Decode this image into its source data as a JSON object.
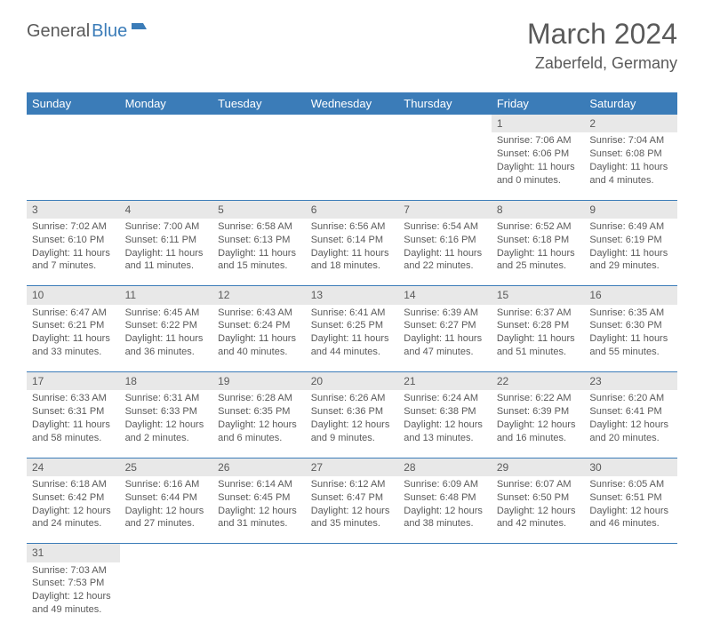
{
  "logo": {
    "part1": "General",
    "part2": "Blue"
  },
  "header": {
    "title": "March 2024",
    "location": "Zaberfeld, Germany"
  },
  "colors": {
    "header_bg": "#3b7cb8",
    "header_text": "#ffffff",
    "daynum_bg": "#e8e8e8",
    "text": "#5a5a5a",
    "border": "#3b7cb8"
  },
  "weekdays": [
    "Sunday",
    "Monday",
    "Tuesday",
    "Wednesday",
    "Thursday",
    "Friday",
    "Saturday"
  ],
  "weeks": [
    [
      null,
      null,
      null,
      null,
      null,
      {
        "n": "1",
        "sr": "Sunrise: 7:06 AM",
        "ss": "Sunset: 6:06 PM",
        "dl": "Daylight: 11 hours and 0 minutes."
      },
      {
        "n": "2",
        "sr": "Sunrise: 7:04 AM",
        "ss": "Sunset: 6:08 PM",
        "dl": "Daylight: 11 hours and 4 minutes."
      }
    ],
    [
      {
        "n": "3",
        "sr": "Sunrise: 7:02 AM",
        "ss": "Sunset: 6:10 PM",
        "dl": "Daylight: 11 hours and 7 minutes."
      },
      {
        "n": "4",
        "sr": "Sunrise: 7:00 AM",
        "ss": "Sunset: 6:11 PM",
        "dl": "Daylight: 11 hours and 11 minutes."
      },
      {
        "n": "5",
        "sr": "Sunrise: 6:58 AM",
        "ss": "Sunset: 6:13 PM",
        "dl": "Daylight: 11 hours and 15 minutes."
      },
      {
        "n": "6",
        "sr": "Sunrise: 6:56 AM",
        "ss": "Sunset: 6:14 PM",
        "dl": "Daylight: 11 hours and 18 minutes."
      },
      {
        "n": "7",
        "sr": "Sunrise: 6:54 AM",
        "ss": "Sunset: 6:16 PM",
        "dl": "Daylight: 11 hours and 22 minutes."
      },
      {
        "n": "8",
        "sr": "Sunrise: 6:52 AM",
        "ss": "Sunset: 6:18 PM",
        "dl": "Daylight: 11 hours and 25 minutes."
      },
      {
        "n": "9",
        "sr": "Sunrise: 6:49 AM",
        "ss": "Sunset: 6:19 PM",
        "dl": "Daylight: 11 hours and 29 minutes."
      }
    ],
    [
      {
        "n": "10",
        "sr": "Sunrise: 6:47 AM",
        "ss": "Sunset: 6:21 PM",
        "dl": "Daylight: 11 hours and 33 minutes."
      },
      {
        "n": "11",
        "sr": "Sunrise: 6:45 AM",
        "ss": "Sunset: 6:22 PM",
        "dl": "Daylight: 11 hours and 36 minutes."
      },
      {
        "n": "12",
        "sr": "Sunrise: 6:43 AM",
        "ss": "Sunset: 6:24 PM",
        "dl": "Daylight: 11 hours and 40 minutes."
      },
      {
        "n": "13",
        "sr": "Sunrise: 6:41 AM",
        "ss": "Sunset: 6:25 PM",
        "dl": "Daylight: 11 hours and 44 minutes."
      },
      {
        "n": "14",
        "sr": "Sunrise: 6:39 AM",
        "ss": "Sunset: 6:27 PM",
        "dl": "Daylight: 11 hours and 47 minutes."
      },
      {
        "n": "15",
        "sr": "Sunrise: 6:37 AM",
        "ss": "Sunset: 6:28 PM",
        "dl": "Daylight: 11 hours and 51 minutes."
      },
      {
        "n": "16",
        "sr": "Sunrise: 6:35 AM",
        "ss": "Sunset: 6:30 PM",
        "dl": "Daylight: 11 hours and 55 minutes."
      }
    ],
    [
      {
        "n": "17",
        "sr": "Sunrise: 6:33 AM",
        "ss": "Sunset: 6:31 PM",
        "dl": "Daylight: 11 hours and 58 minutes."
      },
      {
        "n": "18",
        "sr": "Sunrise: 6:31 AM",
        "ss": "Sunset: 6:33 PM",
        "dl": "Daylight: 12 hours and 2 minutes."
      },
      {
        "n": "19",
        "sr": "Sunrise: 6:28 AM",
        "ss": "Sunset: 6:35 PM",
        "dl": "Daylight: 12 hours and 6 minutes."
      },
      {
        "n": "20",
        "sr": "Sunrise: 6:26 AM",
        "ss": "Sunset: 6:36 PM",
        "dl": "Daylight: 12 hours and 9 minutes."
      },
      {
        "n": "21",
        "sr": "Sunrise: 6:24 AM",
        "ss": "Sunset: 6:38 PM",
        "dl": "Daylight: 12 hours and 13 minutes."
      },
      {
        "n": "22",
        "sr": "Sunrise: 6:22 AM",
        "ss": "Sunset: 6:39 PM",
        "dl": "Daylight: 12 hours and 16 minutes."
      },
      {
        "n": "23",
        "sr": "Sunrise: 6:20 AM",
        "ss": "Sunset: 6:41 PM",
        "dl": "Daylight: 12 hours and 20 minutes."
      }
    ],
    [
      {
        "n": "24",
        "sr": "Sunrise: 6:18 AM",
        "ss": "Sunset: 6:42 PM",
        "dl": "Daylight: 12 hours and 24 minutes."
      },
      {
        "n": "25",
        "sr": "Sunrise: 6:16 AM",
        "ss": "Sunset: 6:44 PM",
        "dl": "Daylight: 12 hours and 27 minutes."
      },
      {
        "n": "26",
        "sr": "Sunrise: 6:14 AM",
        "ss": "Sunset: 6:45 PM",
        "dl": "Daylight: 12 hours and 31 minutes."
      },
      {
        "n": "27",
        "sr": "Sunrise: 6:12 AM",
        "ss": "Sunset: 6:47 PM",
        "dl": "Daylight: 12 hours and 35 minutes."
      },
      {
        "n": "28",
        "sr": "Sunrise: 6:09 AM",
        "ss": "Sunset: 6:48 PM",
        "dl": "Daylight: 12 hours and 38 minutes."
      },
      {
        "n": "29",
        "sr": "Sunrise: 6:07 AM",
        "ss": "Sunset: 6:50 PM",
        "dl": "Daylight: 12 hours and 42 minutes."
      },
      {
        "n": "30",
        "sr": "Sunrise: 6:05 AM",
        "ss": "Sunset: 6:51 PM",
        "dl": "Daylight: 12 hours and 46 minutes."
      }
    ],
    [
      {
        "n": "31",
        "sr": "Sunrise: 7:03 AM",
        "ss": "Sunset: 7:53 PM",
        "dl": "Daylight: 12 hours and 49 minutes."
      },
      null,
      null,
      null,
      null,
      null,
      null
    ]
  ]
}
